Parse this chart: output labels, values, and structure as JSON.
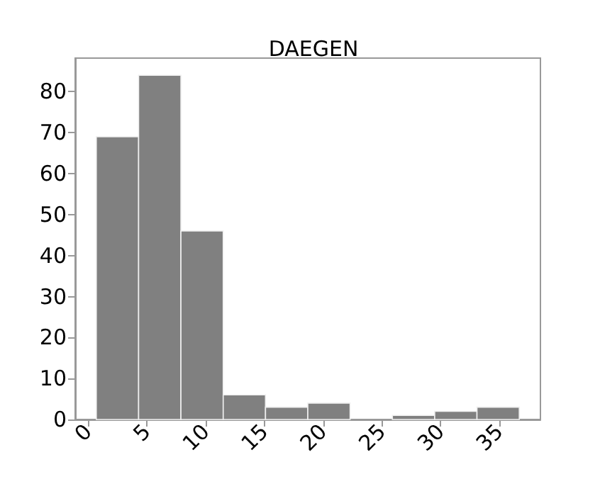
{
  "chart_data": {
    "type": "histogram",
    "title": "DAEGEN",
    "bins": [
      0.7,
      4.3,
      7.9,
      11.5,
      15.1,
      18.7,
      22.3,
      25.9,
      29.5,
      33.1,
      36.7
    ],
    "values": [
      69,
      84,
      46,
      6,
      3,
      4,
      0,
      1,
      2,
      3
    ],
    "color": "#808080",
    "xlim": [
      -1.1,
      38.5
    ],
    "xticks": [
      0,
      5,
      10,
      15,
      20,
      25,
      30,
      35
    ],
    "ylim": [
      0,
      88.2
    ],
    "yticks": [
      0,
      10,
      20,
      30,
      40,
      50,
      60,
      70,
      80
    ],
    "grid": false
  }
}
